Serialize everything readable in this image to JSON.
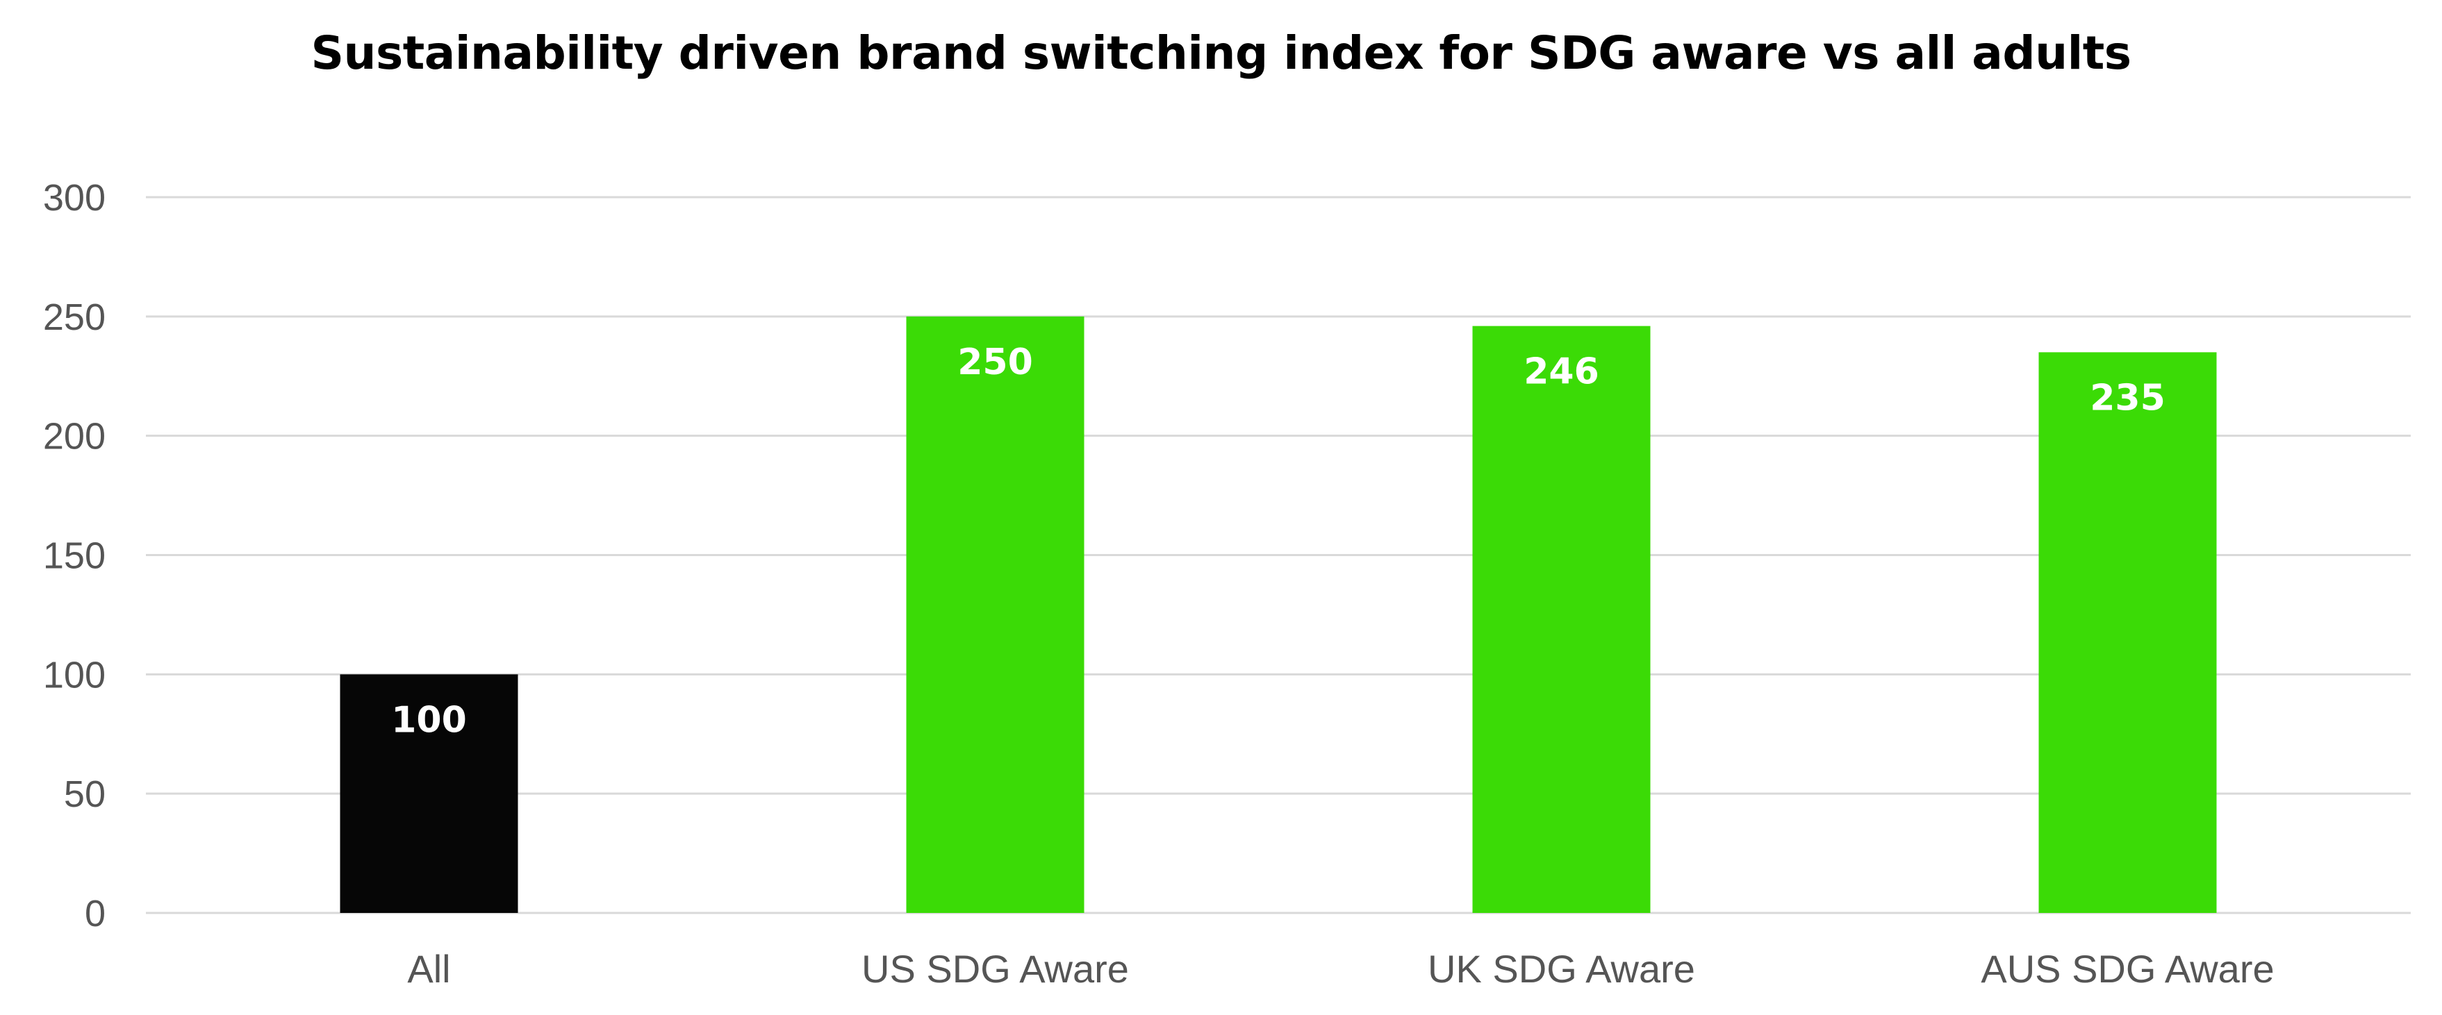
{
  "chart_data": {
    "type": "bar",
    "title": "Sustainability driven brand switching index for SDG aware vs all adults",
    "categories": [
      "All",
      "US SDG Aware",
      "UK SDG Aware",
      "AUS SDG Aware"
    ],
    "values": [
      100,
      250,
      246,
      235
    ],
    "data_labels": [
      "100",
      "250",
      "246",
      "235"
    ],
    "bar_colors": [
      "#060606",
      "#3bdb06",
      "#3bdb06",
      "#3bdb06"
    ],
    "ylim": [
      0,
      300
    ],
    "yticks": [
      0,
      50,
      100,
      150,
      200,
      250,
      300
    ],
    "ytick_labels": [
      "0",
      "50",
      "100",
      "150",
      "200",
      "250",
      "300"
    ],
    "xlabel": "",
    "ylabel": "",
    "grid": true,
    "legend": "none"
  }
}
